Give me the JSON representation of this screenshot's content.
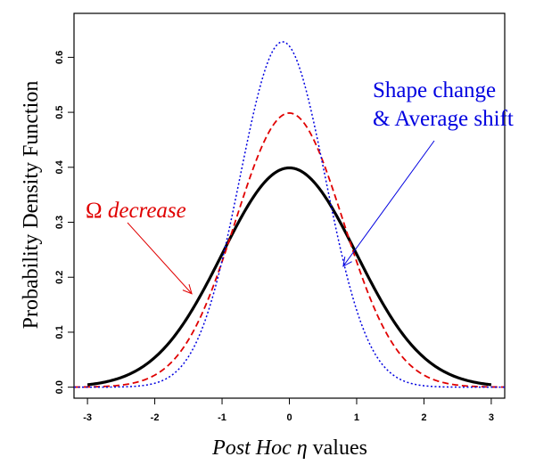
{
  "chart_data": {
    "type": "line",
    "xlabel": "values",
    "xlabel_italic": "Post Hoc η",
    "ylabel": "Probability Density Function",
    "xlim": [
      -3.2,
      3.2
    ],
    "ylim": [
      -0.02,
      0.68
    ],
    "x_ticks": [
      -3,
      -2,
      -1,
      0,
      1,
      2,
      3
    ],
    "x_tick_labels": [
      "-3",
      "-2",
      "-1",
      "0",
      "1",
      "2",
      "3"
    ],
    "y_ticks": [
      0.0,
      0.1,
      0.2,
      0.3,
      0.4,
      0.5,
      0.6
    ],
    "y_tick_labels": [
      "0.0",
      "0.1",
      "0.2",
      "0.3",
      "0.4",
      "0.5",
      "0.6"
    ],
    "grid": false,
    "legend": "none",
    "series": [
      {
        "color": "#000000",
        "style": "solid",
        "dist": {
          "mu": 0,
          "sigma": 1.0
        },
        "x_range": [
          -3,
          3
        ]
      },
      {
        "color": "#e00000",
        "style": "dashed",
        "dist": {
          "mu": 0,
          "sigma": 0.8
        },
        "x_range": [
          -3.2,
          3.2
        ]
      },
      {
        "color": "#0000e0",
        "style": "dotted",
        "dist": {
          "mu": -0.1,
          "sigma": 0.635
        },
        "x_range": [
          -3.2,
          3.2
        ]
      }
    ],
    "annotations": [
      {
        "symbol": "Ω",
        "text": "decrease",
        "color": "#e00000",
        "target": [
          -1.45,
          0.17
        ]
      },
      {
        "line1": "Shape change",
        "line2": "& Average shift",
        "color": "#0000e0",
        "target": [
          0.8,
          0.22
        ]
      }
    ]
  }
}
